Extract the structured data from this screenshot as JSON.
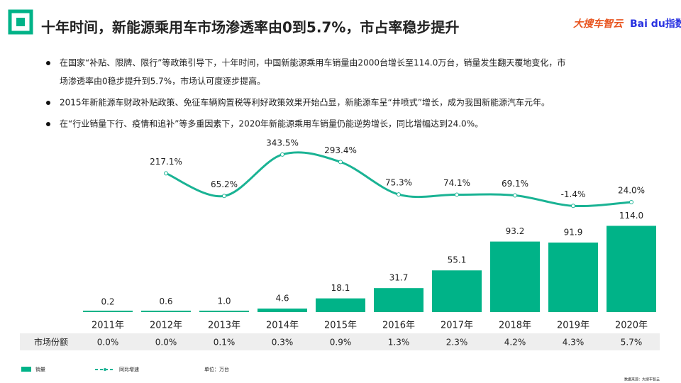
{
  "header": {
    "title": "十年时间，新能源乘用车市场渗透率由0到5.7%，市占率稳步提升",
    "logos": [
      "大搜车智云",
      "Bai du指数"
    ]
  },
  "bullets": [
    [
      "在国家“补贴、限牌、限行”等政策引导下，十年时间，中国新能源乘用车销量由2000台增长至114.0万台，销量发生翻天覆地变化，市",
      "场渗透率由0稳步提升到5.7%，市场认可度逐步提高。"
    ],
    [
      "2015年新能源车财政补贴政策、免征车辆购置税等利好政策效果开始凸显，新能源车呈“井喷式”增长，成为我国新能源汽车元年。"
    ],
    [
      "在“行业销量下行、疫情和追补”等多重因素下，2020年新能源乘用车销量仍能逆势增长，同比增幅达到24.0%。"
    ]
  ],
  "chart_data": {
    "type": "bar-line",
    "categories": [
      "2011年",
      "2012年",
      "2013年",
      "2014年",
      "2015年",
      "2016年",
      "2017年",
      "2018年",
      "2019年",
      "2020年"
    ],
    "series": [
      {
        "name": "销量",
        "type": "bar",
        "color": "#00b388",
        "values": [
          0.2,
          0.6,
          1.0,
          4.6,
          18.1,
          31.7,
          55.1,
          93.2,
          91.9,
          114.0
        ],
        "value_labels": [
          "0.2",
          "0.6",
          "1.0",
          "4.6",
          "18.1",
          "31.7",
          "55.1",
          "93.2",
          "91.9",
          "114.0"
        ]
      },
      {
        "name": "同比增速",
        "type": "line",
        "axis": "y2",
        "color": "#1ab394",
        "values": [
          null,
          217.1,
          65.2,
          343.5,
          293.4,
          75.3,
          74.1,
          69.1,
          -1.4,
          24.0
        ],
        "value_labels": [
          null,
          "217.1%",
          "65.2%",
          "343.5%",
          "293.4%",
          "75.3%",
          "74.1%",
          "69.1%",
          "-1.4%",
          "24.0%"
        ]
      }
    ],
    "ylim": [
      0,
      120
    ],
    "y2lim": [
      -100,
      400
    ],
    "market_share": {
      "label": "市场份额",
      "values": [
        "0.0%",
        "0.0%",
        "0.1%",
        "0.3%",
        "0.9%",
        "1.3%",
        "2.3%",
        "4.2%",
        "4.3%",
        "5.7%"
      ]
    },
    "unit": "单位：万台",
    "source": "数据来源：大搜车智云"
  }
}
